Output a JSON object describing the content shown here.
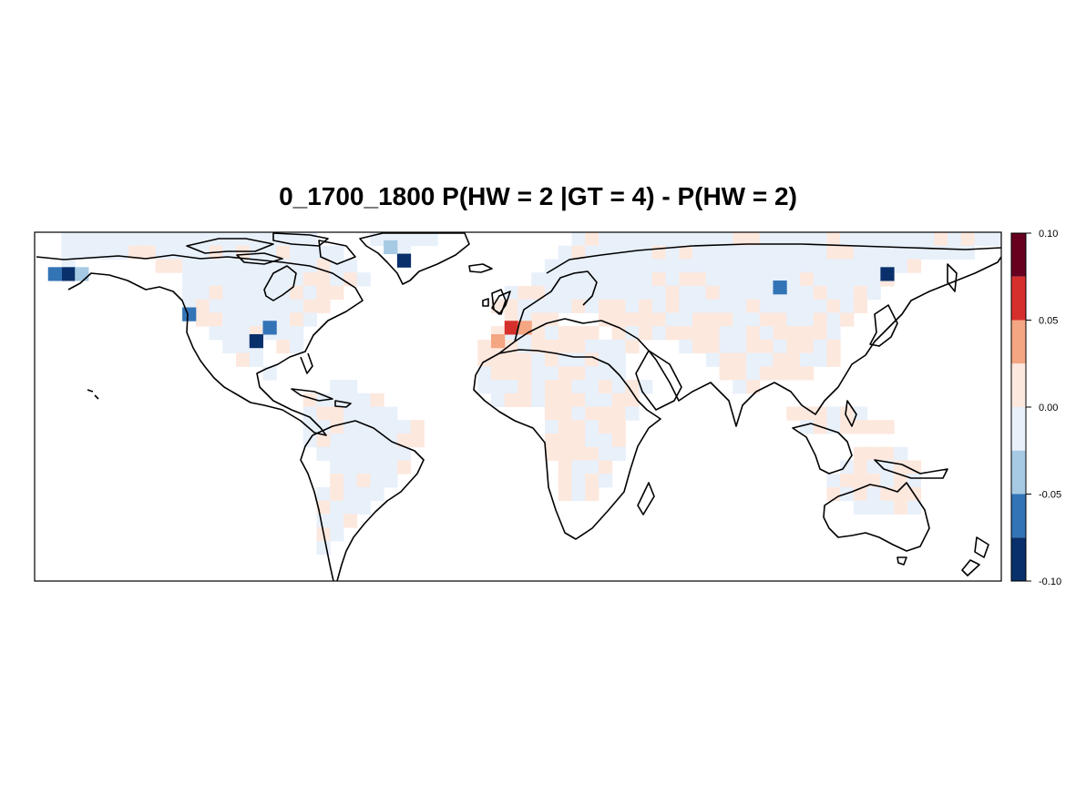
{
  "title": "0_1700_1800 P(HW = 2 |GT = 4) - P(HW = 2)",
  "colorbar": {
    "tick_labels": [
      "0.10",
      "0.05",
      "0.00",
      "-0.05",
      "-0.10"
    ],
    "bins": [
      {
        "from": 0.075,
        "to": 0.1,
        "color": "#67001f"
      },
      {
        "from": 0.05,
        "to": 0.075,
        "color": "#d6302d"
      },
      {
        "from": 0.025,
        "to": 0.05,
        "color": "#f4a582"
      },
      {
        "from": 0.0,
        "to": 0.025,
        "color": "#fde8de"
      },
      {
        "from": -0.025,
        "to": 0.0,
        "color": "#e8f0fa"
      },
      {
        "from": -0.05,
        "to": -0.025,
        "color": "#a6cae3"
      },
      {
        "from": -0.075,
        "to": -0.05,
        "color": "#3374b6"
      },
      {
        "from": -0.1,
        "to": -0.075,
        "color": "#09306b"
      }
    ]
  },
  "map": {
    "projection": "equirectangular",
    "lon_range": [
      -180,
      180
    ],
    "lat_range": [
      -62,
      68
    ],
    "grid_cell_deg": 5,
    "coastlines": true,
    "highlight_cells": [
      {
        "lon": -167,
        "lat": 55,
        "value": -0.09
      },
      {
        "lon": -172,
        "lat": 55,
        "value": -0.06
      },
      {
        "lon": -162,
        "lat": 55,
        "value": -0.04
      },
      {
        "lon": -45,
        "lat": 60,
        "value": -0.09
      },
      {
        "lon": -48,
        "lat": 65,
        "value": -0.04
      },
      {
        "lon": -98,
        "lat": 28,
        "value": -0.09
      },
      {
        "lon": -93,
        "lat": 33,
        "value": -0.06
      },
      {
        "lon": -123,
        "lat": 38,
        "value": -0.06
      },
      {
        "lon": 98,
        "lat": 48,
        "value": -0.06
      },
      {
        "lon": 137,
        "lat": 53,
        "value": -0.09
      },
      {
        "lon": -3,
        "lat": 33,
        "value": 0.06
      },
      {
        "lon": 2,
        "lat": 33,
        "value": 0.04
      },
      {
        "lon": -8,
        "lat": 28,
        "value": 0.04
      }
    ]
  }
}
